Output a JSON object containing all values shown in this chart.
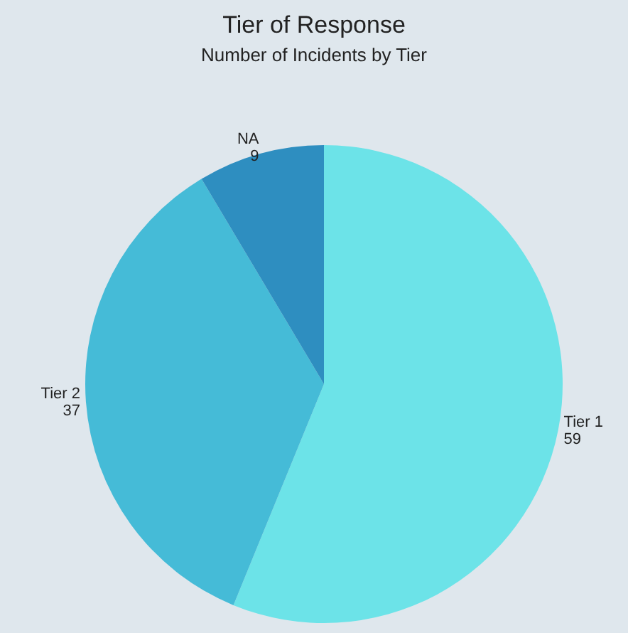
{
  "chart_data": {
    "type": "pie",
    "title": "Tier of Response",
    "subtitle": "Number of Incidents by Tier",
    "categories": [
      "Tier 1",
      "Tier 2",
      "NA"
    ],
    "values": [
      59,
      37,
      9
    ],
    "colors": [
      "#6ce3e8",
      "#45bbd7",
      "#2e8ec0"
    ],
    "data_labels": true
  }
}
